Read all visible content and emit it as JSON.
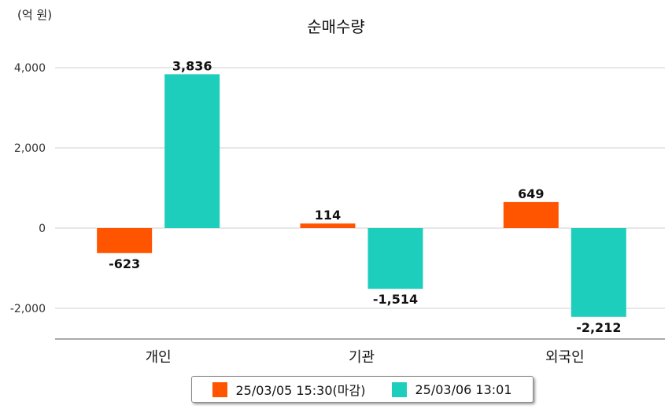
{
  "chart_data": {
    "type": "bar",
    "title": "순매수량",
    "unit": "(억 원)",
    "categories": [
      "개인",
      "기관",
      "외국인"
    ],
    "series": [
      {
        "name": "25/03/05 15:30(마감)",
        "color": "#ff5500",
        "values": [
          -623,
          114,
          649
        ],
        "labels": [
          "-623",
          "114",
          "649"
        ]
      },
      {
        "name": "25/03/06 13:01",
        "color": "#1ecebc",
        "values": [
          3836,
          -1514,
          -2212
        ],
        "labels": [
          "3,836",
          "-1,514",
          "-2,212"
        ]
      }
    ],
    "yticks": [
      4000,
      2000,
      0,
      -2000
    ],
    "ytick_labels": [
      "4,000",
      "2,000",
      "0",
      "-2,000"
    ],
    "ylim": [
      -2800,
      4600
    ],
    "grid": true,
    "legend_position": "bottom"
  }
}
